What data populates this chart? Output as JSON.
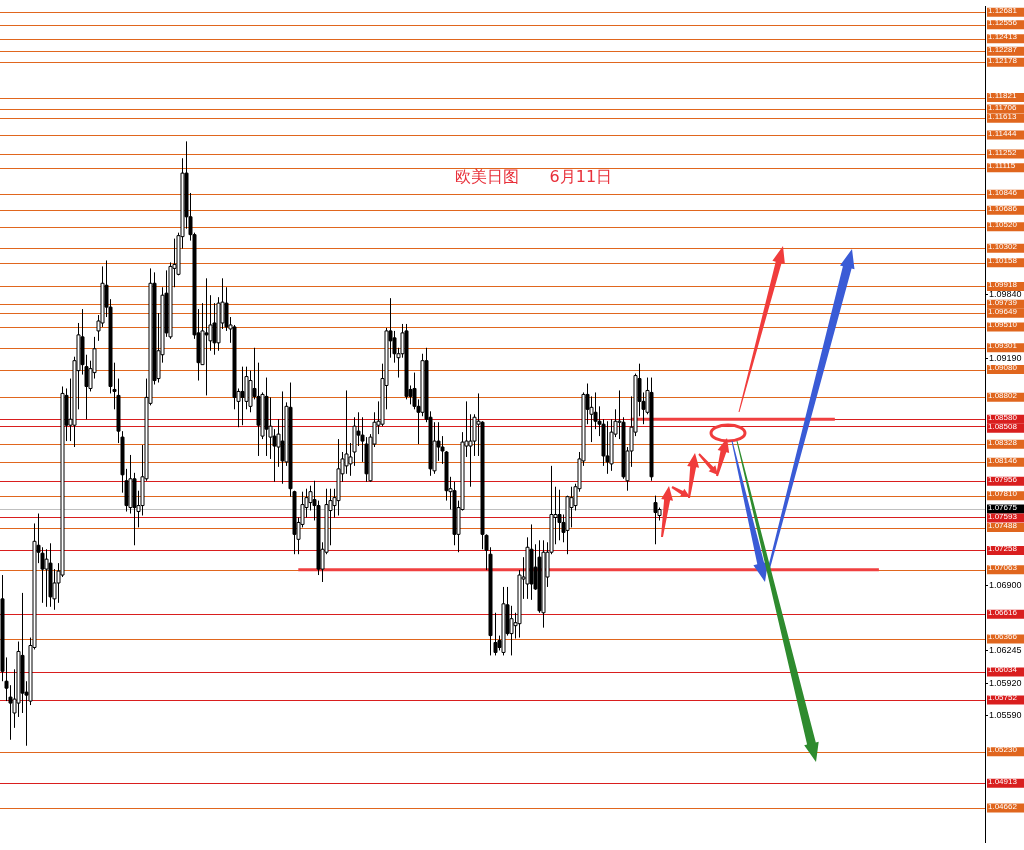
{
  "chart_data": {
    "type": "candlestick",
    "title": "欧美日图      6月11日",
    "tick_labels": "y",
    "grid": false,
    "ylim": [
      1.0432,
      1.1274
    ],
    "yticks": [
      {
        "value": 1.0984,
        "label": "1.09840"
      },
      {
        "value": 1.0919,
        "label": "1.09190"
      },
      {
        "value": 1.069,
        "label": "1.06900"
      },
      {
        "value": 1.06245,
        "label": "1.06245"
      },
      {
        "value": 1.0592,
        "label": "1.05920"
      },
      {
        "value": 1.0559,
        "label": "1.05590"
      }
    ],
    "categories": [
      null,
      null,
      null,
      null,
      null,
      null,
      null,
      null,
      null,
      null,
      null,
      null,
      null,
      null,
      null,
      null,
      null,
      null,
      null,
      null,
      null,
      null,
      null,
      null,
      null,
      null,
      null,
      null,
      null,
      null,
      null,
      null,
      null,
      null,
      null,
      null,
      null,
      null,
      null,
      null,
      null,
      null,
      null,
      null,
      null,
      null,
      null,
      null,
      null,
      null,
      null,
      null,
      null,
      null,
      null,
      null,
      null,
      null,
      null,
      null,
      null,
      null,
      null,
      null,
      null,
      null,
      null,
      null,
      null,
      null,
      null,
      null,
      null,
      null,
      null,
      null,
      null,
      null,
      null,
      null,
      null,
      null,
      null,
      null,
      null,
      null,
      null,
      null,
      null,
      null,
      null,
      null,
      null,
      null,
      null,
      null,
      null,
      null,
      null,
      null,
      null,
      null,
      null,
      null,
      null,
      null,
      null,
      null,
      null,
      null,
      null,
      null,
      null,
      null,
      null,
      null,
      null,
      null,
      null,
      null,
      null,
      null,
      null,
      null,
      null,
      null,
      null,
      null,
      null,
      null,
      null,
      null,
      null,
      null,
      null,
      null,
      null,
      null,
      null,
      null,
      null,
      null,
      null,
      null,
      null,
      null,
      null,
      null,
      null,
      null,
      null,
      null,
      null,
      null,
      null,
      null,
      null,
      null,
      null,
      null,
      null,
      null,
      null,
      null,
      null,
      null,
      null,
      null,
      null,
      null,
      null,
      null,
      null,
      null,
      null,
      null,
      null,
      null,
      null,
      null,
      null,
      null,
      null,
      null,
      null,
      null,
      null,
      null,
      null,
      null,
      null,
      null,
      null,
      null,
      null,
      null,
      null,
      null,
      null,
      null,
      null,
      null,
      null,
      null,
      null,
      null,
      null,
      null,
      null,
      null,
      null,
      null,
      null,
      null,
      null,
      null,
      null,
      null,
      null,
      null,
      null,
      null,
      null,
      null,
      null,
      null,
      null,
      null,
      null,
      null,
      null,
      null,
      null,
      null,
      null,
      null,
      null,
      null,
      null,
      null,
      null,
      null,
      null,
      null,
      null,
      null
    ],
    "ohlc": [
      [
        1.0677,
        1.0701,
        1.0594,
        1.0604
      ],
      [
        1.0594,
        1.0618,
        1.0574,
        1.0587
      ],
      [
        1.0578,
        1.059,
        1.0535,
        1.0572
      ],
      [
        1.0562,
        1.0606,
        1.0547,
        1.0576
      ],
      [
        1.0572,
        1.0634,
        1.0558,
        1.0624
      ],
      [
        1.062,
        1.0683,
        1.0562,
        1.0582
      ],
      [
        1.0583,
        1.0594,
        1.0529,
        1.058
      ],
      [
        1.0574,
        1.0638,
        1.057,
        1.063
      ],
      [
        1.0628,
        1.0753,
        1.0626,
        1.0735
      ],
      [
        1.0731,
        1.0763,
        1.0713,
        1.0724
      ],
      [
        1.0723,
        1.0729,
        1.0673,
        1.0707
      ],
      [
        1.0707,
        1.0727,
        1.0669,
        1.0717
      ],
      [
        1.0713,
        1.0733,
        1.0669,
        1.0679
      ],
      [
        1.0677,
        1.0707,
        1.0666,
        1.0693
      ],
      [
        1.0693,
        1.0713,
        1.0673,
        1.0705
      ],
      [
        1.0701,
        1.0891,
        1.0699,
        1.0884
      ],
      [
        1.0882,
        1.0889,
        1.0836,
        1.0852
      ],
      [
        1.0852,
        1.0899,
        1.0836,
        1.0858
      ],
      [
        1.0852,
        1.0921,
        1.083,
        1.0917
      ],
      [
        1.0907,
        1.0955,
        1.0868,
        1.0943
      ],
      [
        1.0941,
        1.0969,
        1.0903,
        1.0913
      ],
      [
        1.0911,
        1.0923,
        1.0858,
        1.0891
      ],
      [
        1.0889,
        1.0917,
        1.0886,
        1.0909
      ],
      [
        1.0905,
        1.0941,
        1.0899,
        1.0929
      ],
      [
        1.0947,
        1.0963,
        1.0937,
        1.0957
      ],
      [
        1.0955,
        1.1012,
        1.0951,
        1.0995
      ],
      [
        1.0993,
        1.1018,
        1.0961,
        1.0971
      ],
      [
        1.0971,
        1.0979,
        1.0884,
        1.0891
      ],
      [
        1.0888,
        1.0915,
        1.0868,
        1.0886
      ],
      [
        1.0882,
        1.0899,
        1.0834,
        1.0846
      ],
      [
        1.084,
        1.0846,
        1.0784,
        1.0802
      ],
      [
        1.0796,
        1.0808,
        1.0765,
        1.0771
      ],
      [
        1.0769,
        1.0822,
        1.0763,
        1.0798
      ],
      [
        1.0798,
        1.0804,
        1.0731,
        1.0769
      ],
      [
        1.0765,
        1.0786,
        1.0749,
        1.0771
      ],
      [
        1.0771,
        1.0832,
        1.0761,
        1.08
      ],
      [
        1.0798,
        1.0899,
        1.0796,
        1.088
      ],
      [
        1.0874,
        1.101,
        1.0872,
        1.0995
      ],
      [
        1.0995,
        1.1006,
        1.0893,
        1.0897
      ],
      [
        1.0899,
        1.0965,
        1.0895,
        1.0927
      ],
      [
        1.0923,
        1.0991,
        1.0915,
        1.0983
      ],
      [
        1.0985,
        1.1008,
        1.0941,
        1.0945
      ],
      [
        1.0941,
        1.1016,
        1.0939,
        1.1012
      ],
      [
        1.101,
        1.104,
        1.0991,
        1.1014
      ],
      [
        1.1004,
        1.1046,
        1.1003,
        1.1043
      ],
      [
        1.1042,
        1.1121,
        1.103,
        1.1106
      ],
      [
        1.1106,
        1.1138,
        1.105,
        1.1062
      ],
      [
        1.1062,
        1.1086,
        1.1038,
        1.1044
      ],
      [
        1.1044,
        1.1046,
        1.0939,
        1.0943
      ],
      [
        1.0945,
        1.0969,
        1.0897,
        1.0915
      ],
      [
        1.0913,
        1.0975,
        1.0913,
        1.0947
      ],
      [
        1.0945,
        1.1,
        1.0882,
        1.0943
      ],
      [
        1.0937,
        1.0983,
        1.0927,
        1.0953
      ],
      [
        1.0955,
        1.0975,
        1.0923,
        1.0935
      ],
      [
        1.0935,
        1.0981,
        1.0927,
        1.0975
      ],
      [
        1.0955,
        1.1,
        1.0949,
        1.0976
      ],
      [
        1.0975,
        1.0991,
        1.0947,
        1.0951
      ],
      [
        1.0949,
        1.0961,
        1.0935,
        1.0953
      ],
      [
        1.0951,
        1.0953,
        1.0868,
        1.088
      ],
      [
        1.0876,
        1.0889,
        1.085,
        1.0886
      ],
      [
        1.0886,
        1.0911,
        1.0852,
        1.088
      ],
      [
        1.0876,
        1.0911,
        1.0868,
        1.0901
      ],
      [
        1.0871,
        1.0907,
        1.0865,
        1.0897
      ],
      [
        1.0889,
        1.093,
        1.0878,
        1.0881
      ],
      [
        1.0881,
        1.0915,
        1.0821,
        1.0852
      ],
      [
        1.0841,
        1.0885,
        1.0838,
        1.0883
      ],
      [
        1.0881,
        1.09,
        1.0821,
        1.0848
      ],
      [
        1.084,
        1.088,
        1.0818,
        1.0851
      ],
      [
        1.0841,
        1.0848,
        1.0795,
        1.0831
      ],
      [
        1.083,
        1.0858,
        1.081,
        1.0843
      ],
      [
        1.0836,
        1.0886,
        1.0793,
        1.0816
      ],
      [
        1.0815,
        1.0875,
        1.0811,
        1.0871
      ],
      [
        1.087,
        1.0895,
        1.078,
        1.0788
      ],
      [
        1.0785,
        1.0786,
        1.0722,
        1.0742
      ],
      [
        1.0737,
        1.0759,
        1.0722,
        1.0754
      ],
      [
        1.0752,
        1.0785,
        1.0749,
        1.0772
      ],
      [
        1.0769,
        1.0788,
        1.0759,
        1.0779
      ],
      [
        1.0774,
        1.0791,
        1.0766,
        1.0785
      ],
      [
        1.0777,
        1.0796,
        1.0756,
        1.0771
      ],
      [
        1.0771,
        1.0776,
        1.0701,
        1.0707
      ],
      [
        1.0707,
        1.0734,
        1.0694,
        1.0727
      ],
      [
        1.0724,
        1.0788,
        1.0722,
        1.0772
      ],
      [
        1.0766,
        1.0788,
        1.0731,
        1.0776
      ],
      [
        1.0771,
        1.0788,
        1.0759,
        1.0779
      ],
      [
        1.0776,
        1.0838,
        1.0761,
        1.0808
      ],
      [
        1.0803,
        1.0825,
        1.0795,
        1.0818
      ],
      [
        1.0811,
        1.0887,
        1.0803,
        1.0823
      ],
      [
        1.0813,
        1.0834,
        1.0801,
        1.082
      ],
      [
        1.0825,
        1.086,
        1.0811,
        1.0851
      ],
      [
        1.0846,
        1.0865,
        1.0831,
        1.0842
      ],
      [
        1.0842,
        1.086,
        1.0815,
        1.0836
      ],
      [
        1.0833,
        1.084,
        1.0795,
        1.0803
      ],
      [
        1.0796,
        1.0843,
        1.0795,
        1.084
      ],
      [
        1.0833,
        1.0865,
        1.083,
        1.0855
      ],
      [
        1.0852,
        1.0876,
        1.0843,
        1.0856
      ],
      [
        1.0853,
        1.0914,
        1.0851,
        1.0899
      ],
      [
        1.0892,
        1.095,
        1.0868,
        1.0947
      ],
      [
        1.0947,
        1.098,
        1.092,
        1.0937
      ],
      [
        1.094,
        1.0947,
        1.0915,
        1.0924
      ],
      [
        1.092,
        1.093,
        1.09,
        1.0924
      ],
      [
        1.0924,
        1.0954,
        1.092,
        1.0945
      ],
      [
        1.0947,
        1.0954,
        1.0878,
        1.0881
      ],
      [
        1.0888,
        1.0892,
        1.0873,
        1.0881
      ],
      [
        1.0889,
        1.0905,
        1.0868,
        1.0871
      ],
      [
        1.0871,
        1.0878,
        1.0833,
        1.0865
      ],
      [
        1.0865,
        1.0924,
        1.0861,
        1.0917
      ],
      [
        1.0917,
        1.093,
        1.0855,
        1.0858
      ],
      [
        1.086,
        1.0866,
        1.0801,
        1.0808
      ],
      [
        1.0806,
        1.0855,
        1.0803,
        1.0836
      ],
      [
        1.0836,
        1.0855,
        1.0816,
        1.083
      ],
      [
        1.083,
        1.0841,
        1.0813,
        1.0826
      ],
      [
        1.0825,
        1.0826,
        1.0776,
        1.0786
      ],
      [
        1.0785,
        1.08,
        1.0767,
        1.0788
      ],
      [
        1.0786,
        1.0795,
        1.0731,
        1.0742
      ],
      [
        1.0742,
        1.0776,
        1.0724,
        1.0769
      ],
      [
        1.0767,
        1.0845,
        1.0766,
        1.0835
      ],
      [
        1.0831,
        1.0876,
        1.082,
        1.0836
      ],
      [
        1.0831,
        1.0863,
        1.079,
        1.0836
      ],
      [
        1.0836,
        1.0863,
        1.0821,
        1.086
      ],
      [
        1.0853,
        1.0884,
        1.0821,
        1.0856
      ],
      [
        1.0855,
        1.0856,
        1.0727,
        1.0742
      ],
      [
        1.0741,
        1.0742,
        1.0706,
        1.0726
      ],
      [
        1.0722,
        1.0729,
        1.062,
        1.064
      ],
      [
        1.0633,
        1.0663,
        1.062,
        1.0623
      ],
      [
        1.0635,
        1.064,
        1.0625,
        1.0628
      ],
      [
        1.0623,
        1.0689,
        1.062,
        1.0672
      ],
      [
        1.0671,
        1.0689,
        1.064,
        1.0642
      ],
      [
        1.0642,
        1.067,
        1.062,
        1.0657
      ],
      [
        1.065,
        1.0663,
        1.0637,
        1.0653
      ],
      [
        1.0652,
        1.0706,
        1.0638,
        1.0701
      ],
      [
        1.0697,
        1.0719,
        1.0677,
        1.0699
      ],
      [
        1.0692,
        1.0739,
        1.0677,
        1.0729
      ],
      [
        1.0727,
        1.0752,
        1.0676,
        1.0692
      ],
      [
        1.0709,
        1.0732,
        1.0686,
        1.0687
      ],
      [
        1.0719,
        1.0736,
        1.0663,
        1.0665
      ],
      [
        1.0663,
        1.0736,
        1.0648,
        1.0724
      ],
      [
        1.0699,
        1.0734,
        1.0689,
        1.0724
      ],
      [
        1.0724,
        1.0811,
        1.0722,
        1.0762
      ],
      [
        1.0759,
        1.079,
        1.0732,
        1.0762
      ],
      [
        1.0762,
        1.0787,
        1.0736,
        1.0754
      ],
      [
        1.0754,
        1.0762,
        1.0734,
        1.0744
      ],
      [
        1.0746,
        1.0781,
        1.0722,
        1.078
      ],
      [
        1.0769,
        1.079,
        1.0749,
        1.0779
      ],
      [
        1.0771,
        1.0793,
        1.0766,
        1.079
      ],
      [
        1.0788,
        1.0825,
        1.0785,
        1.0818
      ],
      [
        1.0816,
        1.0885,
        1.0811,
        1.0883
      ],
      [
        1.0883,
        1.0894,
        1.0853,
        1.0868
      ],
      [
        1.0863,
        1.0881,
        1.0835,
        1.087
      ],
      [
        1.0865,
        1.0885,
        1.0848,
        1.0856
      ],
      [
        1.0856,
        1.0871,
        1.0841,
        1.0853
      ],
      [
        1.0853,
        1.0858,
        1.0811,
        1.0821
      ],
      [
        1.0821,
        1.0856,
        1.0803,
        1.0815
      ],
      [
        1.0813,
        1.0858,
        1.0806,
        1.0845
      ],
      [
        1.0843,
        1.0868,
        1.084,
        1.0856
      ],
      [
        1.0855,
        1.0887,
        1.0838,
        1.0856
      ],
      [
        1.0855,
        1.086,
        1.0798,
        1.08
      ],
      [
        1.0796,
        1.083,
        1.0786,
        1.0826
      ],
      [
        1.0826,
        1.0881,
        1.081,
        1.085
      ],
      [
        1.0845,
        1.0904,
        1.0841,
        1.0902
      ],
      [
        1.0899,
        1.0914,
        1.0861,
        1.0876
      ],
      [
        1.0876,
        1.0885,
        1.0853,
        1.0868
      ],
      [
        1.0865,
        1.09,
        1.0863,
        1.0887
      ],
      [
        1.0885,
        1.09,
        1.0796,
        1.08
      ],
      [
        1.0774,
        1.0781,
        1.0732,
        1.0764
      ],
      [
        1.0761,
        1.0769,
        1.0756,
        1.0767
      ],
      null,
      null,
      null,
      null,
      null,
      null,
      null,
      null,
      null,
      null,
      null,
      null,
      null,
      null,
      null,
      null,
      null,
      null,
      null,
      null,
      null,
      null,
      null,
      null,
      null,
      null,
      null,
      null,
      null,
      null,
      null,
      null,
      null,
      null,
      null,
      null,
      null,
      null,
      null,
      null,
      null,
      null,
      null,
      null,
      null,
      null,
      null,
      null,
      null,
      null,
      null,
      null,
      null,
      null,
      null,
      null,
      null,
      null,
      null,
      null,
      null,
      null,
      null,
      null,
      null,
      null,
      null,
      null,
      null,
      null,
      null,
      null,
      null,
      null,
      null,
      null,
      null,
      null,
      null,
      null,
      null
    ],
    "series": [
      {
        "type": "line",
        "color": "#f04040",
        "values": [
          null,
          null,
          null,
          null,
          null,
          null,
          null,
          null,
          null,
          null,
          null,
          null,
          null,
          null,
          null,
          null,
          null,
          null,
          null,
          null,
          null,
          null,
          null,
          null,
          null,
          null,
          null,
          null,
          null,
          null,
          null,
          null,
          null,
          null,
          null,
          null,
          null,
          null,
          null,
          null,
          null,
          null,
          null,
          null,
          null,
          null,
          null,
          null,
          null,
          null,
          null,
          null,
          null,
          null,
          null,
          null,
          null,
          null,
          null,
          null,
          null,
          null,
          null,
          null,
          null,
          null,
          null,
          null,
          null,
          null,
          null,
          null,
          null,
          null,
          null,
          null,
          null,
          null,
          null,
          null,
          null,
          null,
          null,
          null,
          null,
          null,
          null,
          null,
          null,
          null,
          null,
          null,
          null,
          null,
          null,
          null,
          null,
          null,
          null,
          null,
          null,
          null,
          null,
          null,
          null,
          null,
          null,
          null,
          null,
          null,
          null,
          null,
          null,
          null,
          null,
          null,
          null,
          null,
          null,
          null,
          null,
          null,
          null,
          null,
          null,
          null,
          null,
          null,
          null,
          null,
          null,
          null,
          null,
          null,
          null,
          null,
          null,
          null,
          null,
          null,
          null,
          null,
          null,
          null,
          null,
          null,
          null,
          null,
          null,
          null,
          null,
          null,
          null,
          null,
          null,
          null,
          null,
          1.0858,
          null,
          null,
          null,
          null,
          null,
          null,
          null,
          null,
          null,
          null,
          null,
          null,
          null,
          null,
          null,
          null,
          null,
          null,
          null,
          null,
          null,
          null,
          null,
          null,
          null,
          null,
          null,
          null,
          null,
          null,
          null,
          null,
          null,
          null,
          null,
          null,
          null,
          null,
          null,
          null,
          null,
          null,
          null,
          null,
          null,
          null,
          null,
          null,
          null,
          null,
          1.0858,
          null,
          null,
          null,
          null,
          null,
          null,
          null,
          null,
          null,
          null,
          null,
          null,
          null,
          null,
          null,
          null,
          null,
          null,
          null,
          null,
          null,
          null,
          null,
          null,
          null,
          null,
          null,
          null,
          null,
          null,
          null,
          null,
          null,
          null,
          null,
          null,
          null
        ]
      },
      {
        "type": "line",
        "color": "#f04040",
        "values": [
          null,
          null,
          null,
          null,
          null,
          null,
          null,
          null,
          null,
          null,
          null,
          null,
          null,
          null,
          null,
          null,
          null,
          null,
          null,
          null,
          null,
          null,
          null,
          null,
          null,
          null,
          null,
          null,
          null,
          null,
          null,
          null,
          null,
          null,
          null,
          null,
          null,
          null,
          null,
          null,
          null,
          null,
          null,
          null,
          null,
          null,
          null,
          null,
          null,
          null,
          null,
          null,
          null,
          null,
          null,
          null,
          null,
          null,
          null,
          null,
          null,
          null,
          null,
          null,
          null,
          null,
          null,
          null,
          null,
          null,
          null,
          null,
          null,
          null,
          1.07063,
          null,
          null,
          null,
          null,
          null,
          null,
          null,
          null,
          null,
          null,
          null,
          null,
          null,
          null,
          null,
          null,
          null,
          null,
          null,
          null,
          null,
          null,
          null,
          null,
          null,
          null,
          null,
          null,
          null,
          null,
          null,
          null,
          null,
          null,
          null,
          null,
          null,
          null,
          null,
          null,
          null,
          null,
          null,
          null,
          null,
          null,
          null,
          null,
          null,
          null,
          null,
          null,
          null,
          null,
          null,
          null,
          null,
          null,
          null,
          null,
          null,
          null,
          null,
          null,
          null,
          null,
          null,
          null,
          null,
          null,
          null,
          null,
          null,
          null,
          null,
          null,
          null,
          null,
          null,
          null,
          null,
          null,
          null,
          null,
          null,
          null,
          null,
          null,
          null,
          null,
          null,
          null,
          null,
          null,
          null,
          null,
          null,
          null,
          null,
          null,
          null,
          null,
          null,
          null,
          null,
          null,
          null,
          null,
          null,
          null,
          null,
          null,
          null,
          null,
          null,
          null,
          null,
          null,
          null,
          null,
          null,
          null,
          null,
          null,
          null,
          null,
          null,
          null,
          null,
          null,
          null,
          null,
          null,
          null,
          null,
          null,
          null,
          null,
          null,
          null,
          null,
          null,
          null,
          null,
          1.07063,
          null,
          null,
          null,
          null,
          null,
          null,
          null,
          null,
          null,
          null,
          null,
          null,
          null,
          null,
          null,
          null,
          null,
          null,
          null,
          null,
          null,
          null,
          null,
          null,
          null,
          null
        ]
      }
    ],
    "ref_lines": [
      {
        "axis": "y",
        "value": 1.12681,
        "label": "1.12681",
        "color": "#e0661e"
      },
      {
        "axis": "y",
        "value": 1.12556,
        "label": "1.12556",
        "color": "#e0661e"
      },
      {
        "axis": "y",
        "value": 1.12413,
        "label": "1.12413",
        "color": "#e0661e"
      },
      {
        "axis": "y",
        "value": 1.12287,
        "label": "1.12287",
        "color": "#e0661e"
      },
      {
        "axis": "y",
        "value": 1.12178,
        "label": "1.12178",
        "color": "#e0661e"
      },
      {
        "axis": "y",
        "value": 1.11821,
        "label": "1.11821",
        "color": "#e0661e"
      },
      {
        "axis": "y",
        "value": 1.11706,
        "label": "1.11706",
        "color": "#e0661e"
      },
      {
        "axis": "y",
        "value": 1.11613,
        "label": "1.11613",
        "color": "#e0661e"
      },
      {
        "axis": "y",
        "value": 1.11444,
        "label": "1.11444",
        "color": "#e0661e"
      },
      {
        "axis": "y",
        "value": 1.11252,
        "label": "1.11252",
        "color": "#e0661e"
      },
      {
        "axis": "y",
        "value": 1.11115,
        "label": "1.11115",
        "color": "#e0661e"
      },
      {
        "axis": "y",
        "value": 1.10846,
        "label": "1.10846",
        "color": "#e0661e"
      },
      {
        "axis": "y",
        "value": 1.10686,
        "label": "1.10686",
        "color": "#e0661e"
      },
      {
        "axis": "y",
        "value": 1.1052,
        "label": "1.10520",
        "color": "#e0661e"
      },
      {
        "axis": "y",
        "value": 1.10302,
        "label": "1.10302",
        "color": "#e0661e"
      },
      {
        "axis": "y",
        "value": 1.10158,
        "label": "1.10158",
        "color": "#e0661e"
      },
      {
        "axis": "y",
        "value": 1.09918,
        "label": "1.09918",
        "color": "#e0661e"
      },
      {
        "axis": "y",
        "value": 1.09739,
        "label": "1.09739",
        "color": "#e0661e"
      },
      {
        "axis": "y",
        "value": 1.09649,
        "label": "1.09649",
        "color": "#e0661e"
      },
      {
        "axis": "y",
        "value": 1.0951,
        "label": "1.09510",
        "color": "#e0661e"
      },
      {
        "axis": "y",
        "value": 1.09301,
        "label": "1.09301",
        "color": "#e0661e"
      },
      {
        "axis": "y",
        "value": 1.0908,
        "label": "1.09080",
        "color": "#e0661e"
      },
      {
        "axis": "y",
        "value": 1.08802,
        "label": "1.08802",
        "color": "#e0661e"
      },
      {
        "axis": "y",
        "value": 1.0858,
        "label": "1.08580",
        "color": "#d91e1e"
      },
      {
        "axis": "y",
        "value": 1.08508,
        "label": "1.08508",
        "color": "#d91e1e"
      },
      {
        "axis": "y",
        "value": 1.08328,
        "label": "1.08328",
        "color": "#e0661e"
      },
      {
        "axis": "y",
        "value": 1.08146,
        "label": "1.08146",
        "color": "#e0661e"
      },
      {
        "axis": "y",
        "value": 1.07956,
        "label": "1.07956",
        "color": "#d91e1e"
      },
      {
        "axis": "y",
        "value": 1.0781,
        "label": "1.07810",
        "color": "#e0661e"
      },
      {
        "axis": "y",
        "value": 1.07675,
        "label": "1.07675",
        "color": "#000000"
      },
      {
        "axis": "y",
        "value": 1.07593,
        "label": "1.07593",
        "color": "#d91e1e"
      },
      {
        "axis": "y",
        "value": 1.07488,
        "label": "1.07488",
        "color": "#e0661e"
      },
      {
        "axis": "y",
        "value": 1.07258,
        "label": "1.07258",
        "color": "#d91e1e"
      },
      {
        "axis": "y",
        "value": 1.07063,
        "label": "1.07063",
        "color": "#e0661e"
      },
      {
        "axis": "y",
        "value": 1.06616,
        "label": "1.06616",
        "color": "#d91e1e"
      },
      {
        "axis": "y",
        "value": 1.06366,
        "label": "1.06366",
        "color": "#e0661e"
      },
      {
        "axis": "y",
        "value": 1.06034,
        "label": "1.06034",
        "color": "#d91e1e"
      },
      {
        "axis": "y",
        "value": 1.05752,
        "label": "1.05752",
        "color": "#d91e1e"
      },
      {
        "axis": "y",
        "value": 1.0523,
        "label": "1.05230",
        "color": "#e0661e"
      },
      {
        "axis": "y",
        "value": 1.04913,
        "label": "1.04913",
        "color": "#d91e1e"
      },
      {
        "axis": "y",
        "value": 1.04662,
        "label": "1.04662",
        "color": "#e0661e"
      }
    ]
  }
}
